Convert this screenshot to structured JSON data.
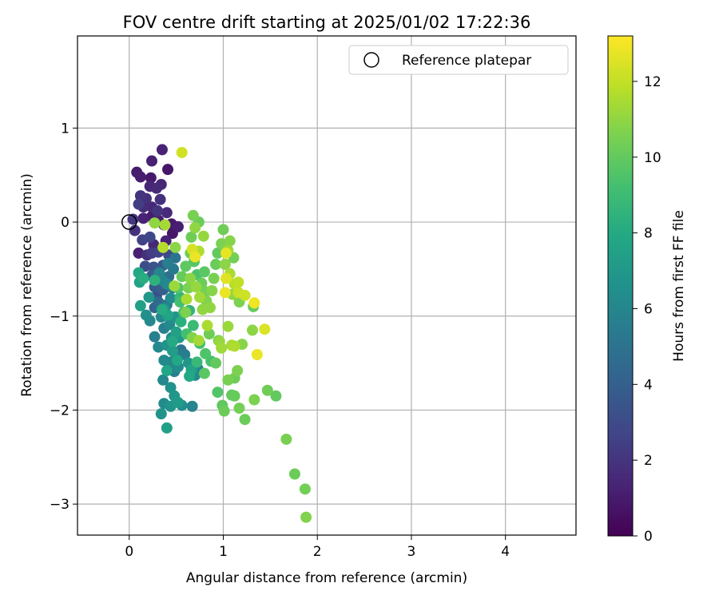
{
  "chart_data": {
    "type": "scatter",
    "title": "FOV centre drift starting at 2025/01/02 17:22:36",
    "xlabel": "Angular distance from reference (arcmin)",
    "ylabel": "Rotation from reference (arcmin)",
    "xlim": [
      -0.55,
      4.75
    ],
    "ylim": [
      -3.33,
      1.98
    ],
    "xticks": [
      0,
      1,
      2,
      3,
      4
    ],
    "yticks": [
      1,
      0,
      -1,
      -2,
      -3
    ],
    "xtick_labels": [
      "0",
      "1",
      "2",
      "3",
      "4"
    ],
    "ytick_labels": [
      "1",
      "0",
      "−1",
      "−2",
      "−3"
    ],
    "grid": true,
    "legend": {
      "placement": "top-right",
      "entries": [
        "Reference platepar"
      ]
    },
    "reference_point": {
      "x": 0,
      "y": 0,
      "marker": "open-circle"
    },
    "colorbar": {
      "label": "Hours from first FF file",
      "range": [
        0,
        13.2
      ],
      "ticks": [
        0,
        2,
        4,
        6,
        8,
        10,
        12
      ],
      "tick_labels": [
        "0",
        "2",
        "4",
        "6",
        "8",
        "10",
        "12"
      ],
      "colormap": "viridis"
    },
    "series": [
      {
        "c_units": "hours",
        "points": [
          {
            "x": 0.08,
            "y": 0.53,
            "c": 1.0
          },
          {
            "x": 0.12,
            "y": 0.48,
            "c": 1.1
          },
          {
            "x": 0.23,
            "y": 0.47,
            "c": 0.9
          },
          {
            "x": 0.24,
            "y": 0.65,
            "c": 1.2
          },
          {
            "x": 0.35,
            "y": 0.77,
            "c": 1.3
          },
          {
            "x": 0.41,
            "y": 0.56,
            "c": 0.8
          },
          {
            "x": 0.34,
            "y": 0.4,
            "c": 1.5
          },
          {
            "x": 0.29,
            "y": 0.36,
            "c": 1.6
          },
          {
            "x": 0.22,
            "y": 0.38,
            "c": 1.4
          },
          {
            "x": 0.12,
            "y": 0.28,
            "c": 2.0
          },
          {
            "x": 0.18,
            "y": 0.25,
            "c": 1.8
          },
          {
            "x": 0.1,
            "y": 0.19,
            "c": 2.4
          },
          {
            "x": 0.15,
            "y": 0.16,
            "c": 1.7
          },
          {
            "x": 0.24,
            "y": 0.16,
            "c": 1.5
          },
          {
            "x": 0.33,
            "y": 0.24,
            "c": 1.8
          },
          {
            "x": 0.3,
            "y": 0.12,
            "c": 2.0
          },
          {
            "x": 0.04,
            "y": 0.03,
            "c": 2.1
          },
          {
            "x": 0.06,
            "y": -0.09,
            "c": 1.9
          },
          {
            "x": 0.15,
            "y": 0.04,
            "c": 1.3
          },
          {
            "x": 0.24,
            "y": 0.06,
            "c": 1.0
          },
          {
            "x": 0.31,
            "y": 0.02,
            "c": 1.2
          },
          {
            "x": 0.4,
            "y": 0.1,
            "c": 1.6
          },
          {
            "x": 0.37,
            "y": -0.03,
            "c": 1.4
          },
          {
            "x": 0.45,
            "y": -0.02,
            "c": 0.9
          },
          {
            "x": 0.52,
            "y": -0.05,
            "c": 1.1
          },
          {
            "x": 0.46,
            "y": -0.12,
            "c": 0.8
          },
          {
            "x": 0.39,
            "y": -0.2,
            "c": 1.3
          },
          {
            "x": 0.14,
            "y": -0.19,
            "c": 2.6
          },
          {
            "x": 0.22,
            "y": -0.16,
            "c": 2.8
          },
          {
            "x": 0.26,
            "y": -0.24,
            "c": 1.5
          },
          {
            "x": 0.1,
            "y": -0.33,
            "c": 1.2
          },
          {
            "x": 0.19,
            "y": -0.35,
            "c": 1.8
          },
          {
            "x": 0.24,
            "y": -0.33,
            "c": 2.3
          },
          {
            "x": 0.31,
            "y": -0.32,
            "c": 2.6
          },
          {
            "x": 0.42,
            "y": -0.35,
            "c": 2.9
          },
          {
            "x": 0.17,
            "y": -0.47,
            "c": 3.1
          },
          {
            "x": 0.26,
            "y": -0.48,
            "c": 3.3
          },
          {
            "x": 0.36,
            "y": -0.46,
            "c": 3.6
          },
          {
            "x": 0.24,
            "y": -0.57,
            "c": 3.9
          },
          {
            "x": 0.33,
            "y": -0.6,
            "c": 3.4
          },
          {
            "x": 0.27,
            "y": -0.69,
            "c": 3.7
          },
          {
            "x": 0.36,
            "y": -0.72,
            "c": 4.0
          },
          {
            "x": 0.29,
            "y": -0.79,
            "c": 3.2
          },
          {
            "x": 0.27,
            "y": -0.91,
            "c": 4.2
          },
          {
            "x": 0.31,
            "y": -0.85,
            "c": 4.6
          },
          {
            "x": 0.4,
            "y": -0.88,
            "c": 5.1
          },
          {
            "x": 0.42,
            "y": -0.58,
            "c": 4.8
          },
          {
            "x": 0.47,
            "y": -0.5,
            "c": 5.4
          },
          {
            "x": 0.49,
            "y": -0.38,
            "c": 5.0
          },
          {
            "x": 0.41,
            "y": -0.44,
            "c": 5.6
          },
          {
            "x": 0.35,
            "y": -0.62,
            "c": 5.8
          },
          {
            "x": 0.32,
            "y": -0.54,
            "c": 6.0
          },
          {
            "x": 0.4,
            "y": -0.66,
            "c": 6.2
          },
          {
            "x": 0.46,
            "y": -0.7,
            "c": 5.9
          },
          {
            "x": 0.44,
            "y": -0.81,
            "c": 6.4
          },
          {
            "x": 0.38,
            "y": -0.92,
            "c": 6.6
          },
          {
            "x": 0.34,
            "y": -1.01,
            "c": 6.1
          },
          {
            "x": 0.37,
            "y": -1.13,
            "c": 5.7
          },
          {
            "x": 0.43,
            "y": -1.09,
            "c": 6.3
          },
          {
            "x": 0.49,
            "y": -1.01,
            "c": 6.8
          },
          {
            "x": 0.45,
            "y": -1.23,
            "c": 6.5
          },
          {
            "x": 0.53,
            "y": -1.23,
            "c": 7.0
          },
          {
            "x": 0.4,
            "y": -1.31,
            "c": 6.7
          },
          {
            "x": 0.46,
            "y": -1.37,
            "c": 7.3
          },
          {
            "x": 0.37,
            "y": -1.47,
            "c": 6.2
          },
          {
            "x": 0.44,
            "y": -1.49,
            "c": 6.0
          },
          {
            "x": 0.5,
            "y": -1.42,
            "c": 5.5
          },
          {
            "x": 0.55,
            "y": -1.36,
            "c": 5.2
          },
          {
            "x": 0.48,
            "y": -1.59,
            "c": 5.8
          },
          {
            "x": 0.52,
            "y": -1.54,
            "c": 6.4
          },
          {
            "x": 0.36,
            "y": -1.68,
            "c": 6.1
          },
          {
            "x": 0.44,
            "y": -1.76,
            "c": 6.6
          },
          {
            "x": 0.48,
            "y": -1.85,
            "c": 6.9
          },
          {
            "x": 0.52,
            "y": -1.92,
            "c": 7.2
          },
          {
            "x": 0.37,
            "y": -1.93,
            "c": 6.3
          },
          {
            "x": 0.44,
            "y": -1.96,
            "c": 6.8
          },
          {
            "x": 0.56,
            "y": -1.95,
            "c": 6.5
          },
          {
            "x": 0.67,
            "y": -1.96,
            "c": 5.9
          },
          {
            "x": 0.34,
            "y": -2.04,
            "c": 6.7
          },
          {
            "x": 0.4,
            "y": -2.19,
            "c": 7.4
          },
          {
            "x": 0.27,
            "y": -1.22,
            "c": 5.7
          },
          {
            "x": 0.31,
            "y": -1.33,
            "c": 6.2
          },
          {
            "x": 0.59,
            "y": -1.41,
            "c": 5.6
          },
          {
            "x": 0.63,
            "y": -1.5,
            "c": 6.9
          },
          {
            "x": 0.66,
            "y": -1.57,
            "c": 7.6
          },
          {
            "x": 0.7,
            "y": -1.63,
            "c": 6.3
          },
          {
            "x": 0.64,
            "y": -1.64,
            "c": 7.9
          },
          {
            "x": 0.73,
            "y": -1.56,
            "c": 6.0
          },
          {
            "x": 0.21,
            "y": -0.8,
            "c": 6.9
          },
          {
            "x": 0.18,
            "y": -0.99,
            "c": 6.5
          },
          {
            "x": 0.22,
            "y": -1.05,
            "c": 6.1
          },
          {
            "x": 0.12,
            "y": -0.89,
            "c": 7.4
          },
          {
            "x": 0.11,
            "y": -0.64,
            "c": 7.6
          },
          {
            "x": 0.1,
            "y": -0.54,
            "c": 7.9
          },
          {
            "x": 0.15,
            "y": -0.6,
            "c": 8.2
          },
          {
            "x": 0.27,
            "y": -0.62,
            "c": 8.4
          },
          {
            "x": 0.35,
            "y": -0.93,
            "c": 8.1
          },
          {
            "x": 0.41,
            "y": -0.99,
            "c": 7.7
          },
          {
            "x": 0.46,
            "y": -1.27,
            "c": 8.0
          },
          {
            "x": 0.4,
            "y": -1.58,
            "c": 7.8
          },
          {
            "x": 0.54,
            "y": -0.8,
            "c": 8.7
          },
          {
            "x": 0.58,
            "y": -0.96,
            "c": 9.0
          },
          {
            "x": 0.64,
            "y": -0.94,
            "c": 8.5
          },
          {
            "x": 0.61,
            "y": -1.19,
            "c": 9.2
          },
          {
            "x": 0.68,
            "y": -1.1,
            "c": 8.9
          },
          {
            "x": 0.55,
            "y": -1.06,
            "c": 8.3
          },
          {
            "x": 0.5,
            "y": -1.17,
            "c": 7.5
          },
          {
            "x": 0.51,
            "y": -1.47,
            "c": 7.9
          },
          {
            "x": 0.72,
            "y": -1.49,
            "c": 8.8
          },
          {
            "x": 0.75,
            "y": -1.29,
            "c": 9.1
          },
          {
            "x": 0.81,
            "y": -1.4,
            "c": 9.5
          },
          {
            "x": 0.8,
            "y": -1.61,
            "c": 9.8
          },
          {
            "x": 0.87,
            "y": -1.48,
            "c": 9.3
          },
          {
            "x": 0.92,
            "y": -1.5,
            "c": 10.0
          },
          {
            "x": 0.95,
            "y": -1.26,
            "c": 10.4
          },
          {
            "x": 0.94,
            "y": -1.81,
            "c": 9.6
          },
          {
            "x": 0.99,
            "y": -1.95,
            "c": 9.9
          },
          {
            "x": 1.01,
            "y": -2.01,
            "c": 10.2
          },
          {
            "x": 1.05,
            "y": -1.68,
            "c": 10.5
          },
          {
            "x": 1.09,
            "y": -1.84,
            "c": 10.0
          },
          {
            "x": 1.12,
            "y": -1.66,
            "c": 10.3
          },
          {
            "x": 1.15,
            "y": -1.58,
            "c": 10.6
          },
          {
            "x": 1.12,
            "y": -1.85,
            "c": 10.1
          },
          {
            "x": 1.17,
            "y": -1.98,
            "c": 10.4
          },
          {
            "x": 1.23,
            "y": -2.1,
            "c": 10.2
          },
          {
            "x": 1.33,
            "y": -1.89,
            "c": 10.6
          },
          {
            "x": 1.47,
            "y": -1.79,
            "c": 10.3
          },
          {
            "x": 1.56,
            "y": -1.85,
            "c": 10.0
          },
          {
            "x": 1.67,
            "y": -2.31,
            "c": 10.5
          },
          {
            "x": 1.76,
            "y": -2.68,
            "c": 10.2
          },
          {
            "x": 1.87,
            "y": -2.84,
            "c": 10.4
          },
          {
            "x": 1.88,
            "y": -3.14,
            "c": 10.7
          },
          {
            "x": 1.2,
            "y": -1.3,
            "c": 10.8
          },
          {
            "x": 1.31,
            "y": -1.15,
            "c": 10.9
          },
          {
            "x": 1.32,
            "y": -0.9,
            "c": 10.1
          },
          {
            "x": 1.17,
            "y": -0.85,
            "c": 10.6
          },
          {
            "x": 1.1,
            "y": -0.77,
            "c": 11.0
          },
          {
            "x": 1.05,
            "y": -1.11,
            "c": 11.2
          },
          {
            "x": 1.09,
            "y": -1.31,
            "c": 11.4
          },
          {
            "x": 1.12,
            "y": -1.32,
            "c": 11.6
          },
          {
            "x": 0.96,
            "y": -1.27,
            "c": 11.1
          },
          {
            "x": 0.98,
            "y": -1.34,
            "c": 11.3
          },
          {
            "x": 0.83,
            "y": -1.1,
            "c": 11.5
          },
          {
            "x": 0.86,
            "y": -0.91,
            "c": 11.0
          },
          {
            "x": 0.82,
            "y": -0.84,
            "c": 10.7
          },
          {
            "x": 0.81,
            "y": -0.74,
            "c": 10.4
          },
          {
            "x": 0.77,
            "y": -0.65,
            "c": 10.2
          },
          {
            "x": 0.8,
            "y": -0.53,
            "c": 9.8
          },
          {
            "x": 0.72,
            "y": -0.56,
            "c": 9.4
          },
          {
            "x": 0.69,
            "y": -0.42,
            "c": 9.7
          },
          {
            "x": 0.65,
            "y": -0.33,
            "c": 10.3
          },
          {
            "x": 0.6,
            "y": -0.47,
            "c": 9.9
          },
          {
            "x": 0.56,
            "y": -0.58,
            "c": 10.1
          },
          {
            "x": 0.52,
            "y": -0.7,
            "c": 9.6
          },
          {
            "x": 0.54,
            "y": -0.85,
            "c": 9.2
          },
          {
            "x": 0.63,
            "y": -0.7,
            "c": 10.6
          },
          {
            "x": 0.65,
            "y": -0.6,
            "c": 10.9
          },
          {
            "x": 0.71,
            "y": -0.69,
            "c": 11.1
          },
          {
            "x": 0.75,
            "y": -0.8,
            "c": 11.3
          },
          {
            "x": 0.78,
            "y": -0.93,
            "c": 11.0
          },
          {
            "x": 0.88,
            "y": -0.73,
            "c": 10.8
          },
          {
            "x": 0.9,
            "y": -0.6,
            "c": 10.5
          },
          {
            "x": 0.92,
            "y": -0.45,
            "c": 10.2
          },
          {
            "x": 0.94,
            "y": -0.33,
            "c": 10.0
          },
          {
            "x": 0.98,
            "y": -0.23,
            "c": 10.6
          },
          {
            "x": 1.0,
            "y": -0.08,
            "c": 10.3
          },
          {
            "x": 1.07,
            "y": -0.2,
            "c": 10.8
          },
          {
            "x": 1.05,
            "y": -0.3,
            "c": 11.2
          },
          {
            "x": 1.02,
            "y": -0.45,
            "c": 10.9
          },
          {
            "x": 1.07,
            "y": -0.55,
            "c": 11.5
          },
          {
            "x": 1.12,
            "y": -0.66,
            "c": 11.8
          },
          {
            "x": 1.16,
            "y": -0.75,
            "c": 12.1
          },
          {
            "x": 1.03,
            "y": -0.6,
            "c": 12.6
          },
          {
            "x": 1.02,
            "y": -0.75,
            "c": 12.8
          },
          {
            "x": 1.11,
            "y": -0.38,
            "c": 10.4
          },
          {
            "x": 0.74,
            "y": 0.0,
            "c": 10.2
          },
          {
            "x": 0.68,
            "y": 0.07,
            "c": 10.5
          },
          {
            "x": 0.7,
            "y": -0.06,
            "c": 11.0
          },
          {
            "x": 0.66,
            "y": -0.16,
            "c": 10.3
          },
          {
            "x": 0.79,
            "y": -0.15,
            "c": 11.1
          },
          {
            "x": 0.74,
            "y": -0.31,
            "c": 11.6
          },
          {
            "x": 0.7,
            "y": -0.37,
            "c": 12.8
          },
          {
            "x": 0.67,
            "y": -0.29,
            "c": 12.4
          },
          {
            "x": 1.03,
            "y": -0.33,
            "c": 12.7
          },
          {
            "x": 1.16,
            "y": -0.64,
            "c": 11.9
          },
          {
            "x": 1.23,
            "y": -0.78,
            "c": 12.2
          },
          {
            "x": 1.33,
            "y": -0.86,
            "c": 12.9
          },
          {
            "x": 1.44,
            "y": -1.14,
            "c": 12.5
          },
          {
            "x": 1.36,
            "y": -1.41,
            "c": 12.8
          },
          {
            "x": 0.56,
            "y": 0.74,
            "c": 12.3
          },
          {
            "x": 0.27,
            "y": -0.01,
            "c": 11.0
          },
          {
            "x": 0.38,
            "y": -0.03,
            "c": 11.4
          },
          {
            "x": 0.36,
            "y": -0.27,
            "c": 11.7
          },
          {
            "x": 0.49,
            "y": -0.27,
            "c": 10.9
          },
          {
            "x": 0.48,
            "y": -0.68,
            "c": 11.2
          },
          {
            "x": 0.6,
            "y": -0.96,
            "c": 10.6
          },
          {
            "x": 0.67,
            "y": -1.23,
            "c": 10.7
          },
          {
            "x": 0.74,
            "y": -1.26,
            "c": 11.4
          },
          {
            "x": 0.85,
            "y": -1.19,
            "c": 10.3
          },
          {
            "x": 0.61,
            "y": -0.82,
            "c": 11.5
          }
        ]
      }
    ]
  }
}
